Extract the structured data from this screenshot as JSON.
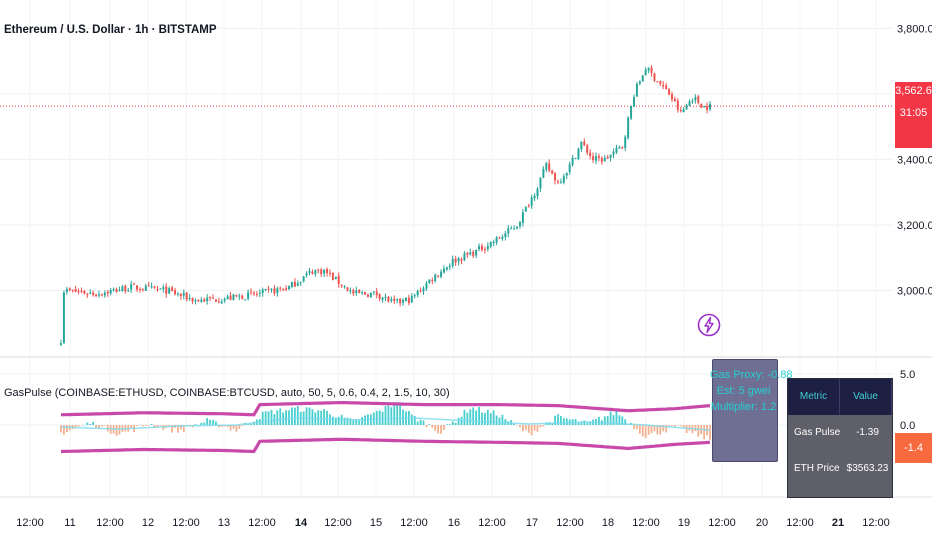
{
  "chart_title": "Ethereum / U.S. Dollar · 1h · BITSTAMP",
  "indicator_title": "GasPulse (COINBASE:ETHUSD, COINBASE:BTCUSD, auto, 50, 5, 0.6, 0.4, 2, 1.5, 10, 30)",
  "price_label": "3,562.6",
  "countdown_label": "31:05",
  "indicator_value_label": "-1.4",
  "gas_box": {
    "line1": "Gas Proxy: -0.88",
    "line2": "Est: 5 gwei",
    "line3": "Multiplier: 1.2"
  },
  "metrics_table": {
    "headers": [
      "Metric",
      "Value"
    ],
    "rows": [
      {
        "metric": "Gas Pulse",
        "value": "-1.39"
      },
      {
        "metric": "ETH Price",
        "value": "$3563.23"
      }
    ]
  },
  "colors": {
    "up": "#26a69a",
    "down": "#ef5350",
    "band": "#c849a9",
    "signal": "#7ad9ec",
    "hist_pos": "#26c6c6",
    "hist_neg": "#f2a27a",
    "price_line": "#f23645",
    "axis_text": "#131722"
  },
  "chart_data": [
    {
      "type": "candlestick",
      "title": "Ethereum / U.S. Dollar · 1h · BITSTAMP",
      "xlabel": "",
      "ylabel": "",
      "ylim": [
        2800,
        3850
      ],
      "y_ticks": [
        "3,800.0",
        "3,600.0",
        "3,400.0",
        "3,200.0",
        "3,000.0"
      ],
      "y_tick_values": [
        3800,
        3600,
        3400,
        3200,
        3000
      ],
      "x_ticks": [
        "12:00",
        "11",
        "12:00",
        "12",
        "12:00",
        "13",
        "12:00",
        "14",
        "12:00",
        "15",
        "12:00",
        "16",
        "12:00",
        "17",
        "12:00",
        "18",
        "12:00",
        "19",
        "12:00",
        "20",
        "12:00",
        "21",
        "12:00"
      ],
      "x_tick_bold": [
        "14",
        "21"
      ],
      "last_price": 3562.6,
      "close_path": [
        [
          0,
          2850
        ],
        [
          1,
          3000
        ],
        [
          12,
          2990
        ],
        [
          24,
          3010
        ],
        [
          36,
          3000
        ],
        [
          46,
          2970
        ],
        [
          56,
          2975
        ],
        [
          68,
          2990
        ],
        [
          78,
          3010
        ],
        [
          86,
          3060
        ],
        [
          90,
          3060
        ],
        [
          100,
          2990
        ],
        [
          108,
          2990
        ],
        [
          114,
          2960
        ],
        [
          120,
          2975
        ],
        [
          126,
          3030
        ],
        [
          134,
          3090
        ],
        [
          142,
          3120
        ],
        [
          150,
          3160
        ],
        [
          156,
          3200
        ],
        [
          162,
          3300
        ],
        [
          166,
          3380
        ],
        [
          170,
          3330
        ],
        [
          174,
          3380
        ],
        [
          178,
          3450
        ],
        [
          182,
          3400
        ],
        [
          186,
          3400
        ],
        [
          192,
          3440
        ],
        [
          196,
          3600
        ],
        [
          200,
          3680
        ],
        [
          204,
          3640
        ],
        [
          208,
          3600
        ],
        [
          212,
          3540
        ],
        [
          216,
          3590
        ],
        [
          220,
          3560
        ],
        [
          222,
          3562.6
        ]
      ],
      "n_bars": 223
    },
    {
      "type": "line",
      "title": "GasPulse (COINBASE:ETHUSD, COINBASE:BTCUSD, auto, 50, 5, 0.6, 0.4, 2, 1.5, 10, 30)",
      "ylim": [
        -4.8,
        5.6
      ],
      "y_ticks": [
        "5.0",
        "0.0"
      ],
      "y_tick_values": [
        5.0,
        0.0
      ],
      "series": [
        {
          "values_desc": "upper band",
          "key": "upper"
        },
        {
          "values_desc": "lower band",
          "key": "lower"
        },
        {
          "values_desc": "signal",
          "key": "signal"
        },
        {
          "values_desc": "histogram",
          "key": "hist"
        }
      ],
      "upper_band_path": [
        [
          0,
          1.0
        ],
        [
          28,
          1.2
        ],
        [
          56,
          1.1
        ],
        [
          66,
          1.0
        ],
        [
          68,
          2.0
        ],
        [
          96,
          2.2
        ],
        [
          124,
          2.0
        ],
        [
          150,
          2.0
        ],
        [
          170,
          1.9
        ],
        [
          194,
          1.4
        ],
        [
          210,
          1.6
        ],
        [
          222,
          1.9
        ]
      ],
      "lower_band_path": [
        [
          0,
          -2.6
        ],
        [
          28,
          -2.4
        ],
        [
          56,
          -2.5
        ],
        [
          66,
          -2.6
        ],
        [
          68,
          -1.6
        ],
        [
          96,
          -1.4
        ],
        [
          124,
          -1.6
        ],
        [
          150,
          -1.7
        ],
        [
          170,
          -1.8
        ],
        [
          194,
          -2.3
        ],
        [
          210,
          -1.9
        ],
        [
          222,
          -1.7
        ]
      ],
      "hist_path": [
        [
          0,
          -0.8
        ],
        [
          10,
          0.2
        ],
        [
          20,
          -0.9
        ],
        [
          30,
          0.1
        ],
        [
          40,
          -0.6
        ],
        [
          50,
          0.4
        ],
        [
          60,
          -0.5
        ],
        [
          70,
          1.2
        ],
        [
          80,
          1.6
        ],
        [
          90,
          1.4
        ],
        [
          100,
          0.3
        ],
        [
          110,
          1.5
        ],
        [
          115,
          2.2
        ],
        [
          120,
          0.9
        ],
        [
          130,
          -0.7
        ],
        [
          140,
          1.7
        ],
        [
          150,
          1.0
        ],
        [
          160,
          -0.9
        ],
        [
          170,
          0.8
        ],
        [
          180,
          0.1
        ],
        [
          190,
          1.3
        ],
        [
          200,
          -1.1
        ],
        [
          210,
          -0.2
        ],
        [
          222,
          -1.4
        ]
      ],
      "signal_path": [
        [
          0,
          -0.2
        ],
        [
          20,
          -0.4
        ],
        [
          40,
          -0.1
        ],
        [
          60,
          0.0
        ],
        [
          80,
          0.7
        ],
        [
          100,
          0.5
        ],
        [
          120,
          0.7
        ],
        [
          140,
          0.4
        ],
        [
          160,
          0.1
        ],
        [
          180,
          0.3
        ],
        [
          200,
          0.0
        ],
        [
          222,
          -0.5
        ]
      ],
      "last_value": -1.4
    }
  ]
}
